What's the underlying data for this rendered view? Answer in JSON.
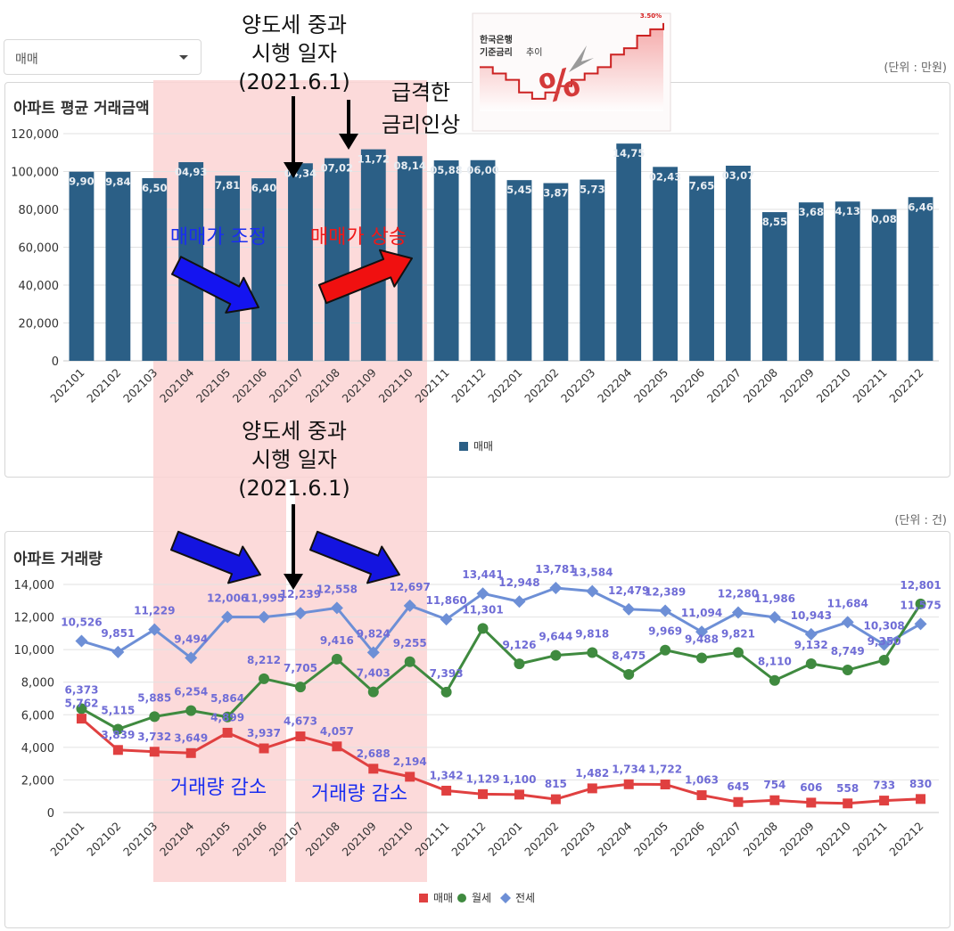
{
  "dropdown": {
    "selected": "매매"
  },
  "charts": {
    "price": {
      "unit_label": "(단위 : 만원)",
      "title": "아파트 평균 거래금액",
      "legend": "매매"
    },
    "volume": {
      "unit_label": "(단위 : 건)",
      "title": "아파트 거래량",
      "legend": [
        "매매",
        "월세",
        "전세"
      ]
    }
  },
  "annotations": {
    "tax_top": [
      "양도세 중과",
      "시행 일자",
      "(2021.6.1)"
    ],
    "tax_bottom": [
      "양도세 중과",
      "시행 일자",
      "(2021.6.1)"
    ],
    "rate_hike": [
      "급격한",
      "금리인상"
    ],
    "price_adjust": "매매가 조정",
    "price_rise": "매매가 상승",
    "volume_drop_1": "거래량 감소",
    "volume_drop_2": "거래량 감소",
    "inset": {
      "title_line1": "한국은행",
      "title_line2_bold": "기준금리",
      "title_line2_rest": " 추이",
      "last_value": "3.50%",
      "glyph": "%"
    }
  },
  "colors": {
    "bar": "#2b5f86",
    "jeonse": "#6d8fd6",
    "wolse": "#3f8a3f",
    "maemae": "#e04040",
    "highlight": "#fbd4d4",
    "blue_text": "#1a2ef0",
    "red_text": "#f01818"
  },
  "chart_data": [
    {
      "type": "bar",
      "title": "아파트 평균 거래금액",
      "categories": [
        "202101",
        "202102",
        "202103",
        "202104",
        "202105",
        "202106",
        "202107",
        "202108",
        "202109",
        "202110",
        "202111",
        "202112",
        "202201",
        "202202",
        "202203",
        "202204",
        "202205",
        "202206",
        "202207",
        "202208",
        "202209",
        "202210",
        "202211",
        "202212"
      ],
      "series": [
        {
          "name": "매매",
          "values": [
            99900,
            99840,
            96500,
            104930,
            97810,
            96400,
            104340,
            107020,
            111720,
            108140,
            105880,
            106000,
            95450,
            93870,
            95730,
            114750,
            102430,
            97650,
            103070,
            78550,
            83680,
            84130,
            80080,
            86460
          ],
          "labels": [
            "9,90",
            "9,84",
            "6,50",
            "04,93",
            "7,81",
            "6,40",
            "04,34",
            "07,02",
            "11,72",
            "08,14",
            "05,88",
            "06,00",
            "5,45",
            "3,87",
            "5,73",
            "14,75",
            "02,43",
            "7,65",
            "03,07",
            "8,55",
            "3,68",
            "4,13",
            "0,08",
            "6,46"
          ]
        }
      ],
      "yticks": [
        "0",
        "20,000",
        "40,000",
        "60,000",
        "80,000",
        "100,000",
        "120,000"
      ],
      "ylim": [
        0,
        120000
      ],
      "grid": true,
      "legend": "bottom-center"
    },
    {
      "type": "line",
      "title": "아파트 거래량",
      "categories": [
        "202101",
        "202102",
        "202103",
        "202104",
        "202105",
        "202106",
        "202107",
        "202108",
        "202109",
        "202110",
        "202111",
        "202112",
        "202201",
        "202202",
        "202203",
        "202204",
        "202205",
        "202206",
        "202207",
        "202208",
        "202209",
        "202210",
        "202211",
        "202212"
      ],
      "series": [
        {
          "name": "매매",
          "values": [
            5762,
            3839,
            3732,
            3649,
            4899,
            3937,
            4673,
            4057,
            2688,
            2194,
            1342,
            1129,
            1100,
            815,
            1482,
            1734,
            1722,
            1063,
            645,
            754,
            606,
            558,
            733,
            830
          ]
        },
        {
          "name": "월세",
          "values": [
            6373,
            5115,
            5885,
            6254,
            5864,
            8212,
            7705,
            9416,
            7403,
            9255,
            7393,
            11301,
            9126,
            9644,
            9818,
            8475,
            9969,
            9488,
            9821,
            8110,
            9132,
            8749,
            9350,
            12801
          ]
        },
        {
          "name": "전세",
          "values": [
            10526,
            9851,
            11229,
            9494,
            12006,
            11995,
            12239,
            12558,
            9824,
            12697,
            11860,
            13441,
            12948,
            13781,
            13584,
            12479,
            12389,
            11094,
            12280,
            11986,
            10943,
            11684,
            10308,
            11575
          ]
        }
      ],
      "labels": {
        "매매": [
          "5,762",
          "3,839",
          "3,732",
          "3,649",
          "4,899",
          "3,937",
          "4,673",
          "4,057",
          "2,688",
          "2,194",
          "1,342",
          "1,129",
          "1,100",
          "815",
          "1,482",
          "1,734",
          "1,722",
          "1,063",
          "645",
          "754",
          "606",
          "558",
          "733",
          "830"
        ],
        "월세": [
          "6,373",
          "5,115",
          "5,885",
          "6,254",
          "5,864",
          "8,212",
          "7,705",
          "9,416",
          "7,403",
          "9,255",
          "7,393",
          "11,301",
          "9,126",
          "9,644",
          "9,818",
          "8,475",
          "9,969",
          "9,488",
          "9,821",
          "8,110",
          "9,132",
          "8,749",
          "9,350",
          "12,801"
        ],
        "전세": [
          "10,526",
          "9,851",
          "11,229",
          "9,494",
          "12,006",
          "11,995",
          "12,239",
          "12,558",
          "9,824",
          "12,697",
          "11,860",
          "13,441",
          "12,948",
          "13,781",
          "13,584",
          "12,479",
          "12,389",
          "11,094",
          "12,280",
          "11,986",
          "10,943",
          "11,684",
          "10,308",
          "11,575"
        ]
      },
      "yticks": [
        "0",
        "2,000",
        "4,000",
        "6,000",
        "8,000",
        "10,000",
        "12,000",
        "14,000"
      ],
      "ylim": [
        0,
        14000
      ],
      "grid": true,
      "legend": "bottom-center"
    },
    {
      "type": "line",
      "title": "한국은행 기준금리 추이",
      "values": [
        1.75,
        1.5,
        1.25,
        0.75,
        0.5,
        0.75,
        1.0,
        1.25,
        1.5,
        1.75,
        2.25,
        2.5,
        3.0,
        3.25,
        3.5
      ]
    }
  ]
}
